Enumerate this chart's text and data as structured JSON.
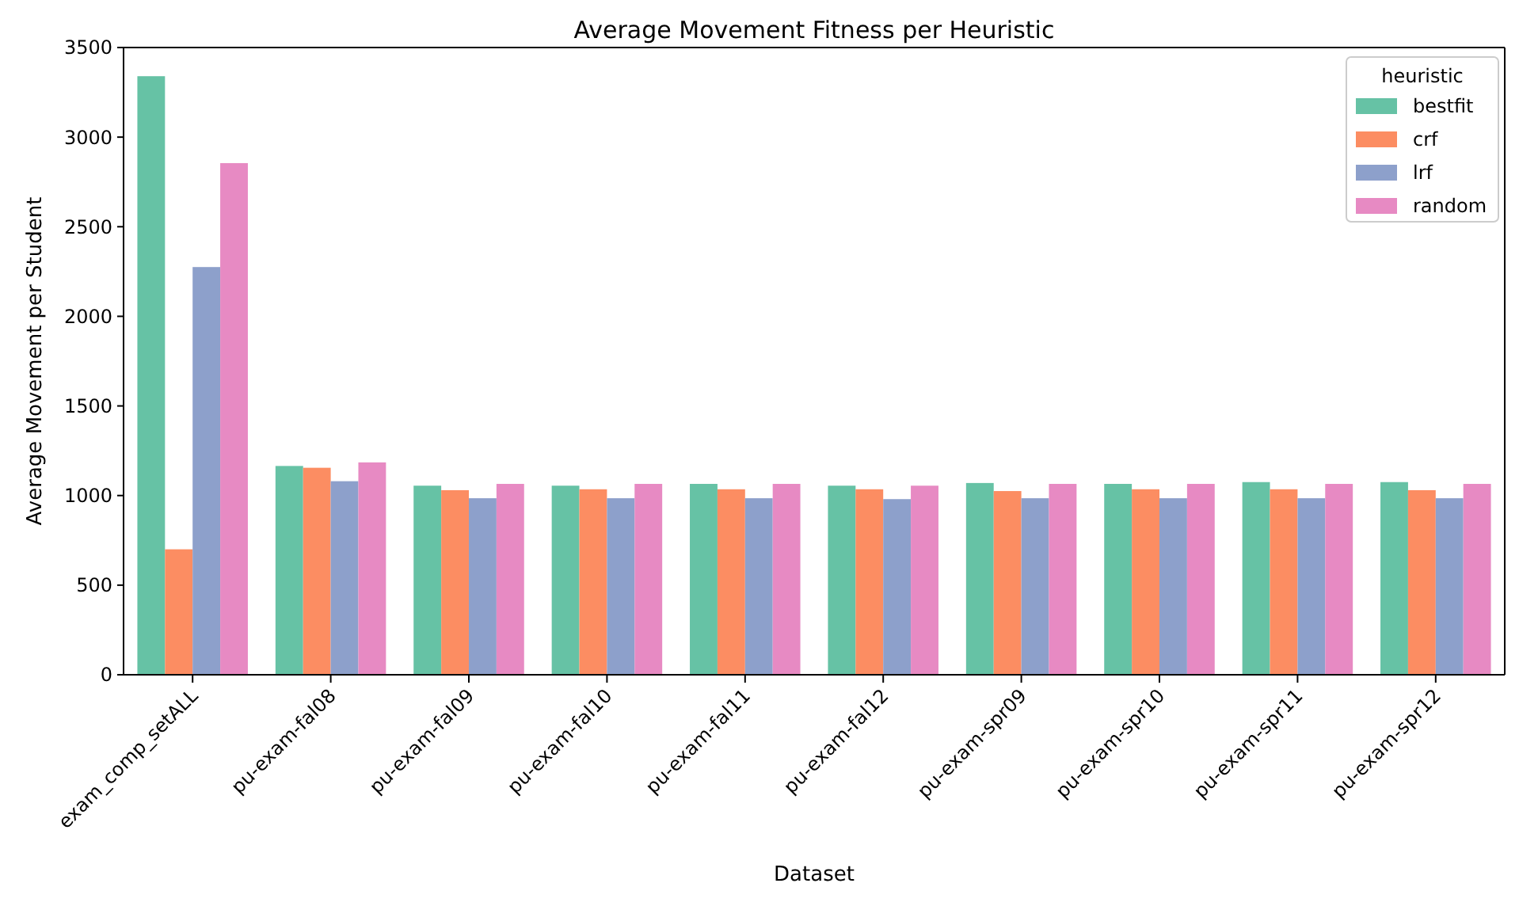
{
  "chart_data": {
    "type": "bar",
    "title": "Average Movement Fitness per Heuristic",
    "xlabel": "Dataset",
    "ylabel": "Average Movement per Student",
    "legend_title": "heuristic",
    "legend": "top right",
    "categories": [
      "exam_comp_setALL",
      "pu-exam-fal08",
      "pu-exam-fal09",
      "pu-exam-fal10",
      "pu-exam-fal11",
      "pu-exam-fal12",
      "pu-exam-spr09",
      "pu-exam-spr10",
      "pu-exam-spr11",
      "pu-exam-spr12"
    ],
    "series": [
      {
        "name": "bestfit",
        "color": "#66c2a5",
        "values": [
          3340,
          1165,
          1055,
          1055,
          1065,
          1055,
          1070,
          1065,
          1075,
          1075
        ]
      },
      {
        "name": "crf",
        "color": "#fc8d62",
        "values": [
          700,
          1155,
          1030,
          1035,
          1035,
          1035,
          1025,
          1035,
          1035,
          1030
        ]
      },
      {
        "name": "lrf",
        "color": "#8da0cb",
        "values": [
          2275,
          1080,
          985,
          985,
          985,
          980,
          985,
          985,
          985,
          985
        ]
      },
      {
        "name": "random",
        "color": "#e78ac3",
        "values": [
          2855,
          1185,
          1065,
          1065,
          1065,
          1055,
          1065,
          1065,
          1065,
          1065
        ]
      }
    ],
    "ylim": [
      0,
      3500
    ],
    "yticks": [
      0,
      500,
      1000,
      1500,
      2000,
      2500,
      3000,
      3500
    ],
    "grid": false
  }
}
